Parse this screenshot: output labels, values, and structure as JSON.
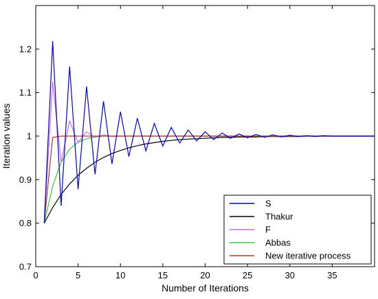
{
  "chart_data": {
    "type": "line",
    "title": "",
    "xlabel": "Number of Iterations",
    "ylabel": "Iteration values",
    "xlim": [
      0,
      40
    ],
    "ylim": [
      0.7,
      1.3
    ],
    "xticks": [
      0,
      5,
      10,
      15,
      20,
      25,
      30,
      35
    ],
    "yticks": [
      0.7,
      0.8,
      0.9,
      1,
      1.1,
      1.2
    ],
    "ytick_labels": [
      "0.7",
      "0.8",
      "0.9",
      "1",
      "1.1",
      "1.2"
    ],
    "grid": false,
    "legend_position": "bottom-right",
    "series": [
      {
        "name": "S",
        "color": "#0000cc",
        "x": [
          1,
          2,
          3,
          4,
          5,
          6,
          7,
          8,
          9,
          10,
          11,
          12,
          13,
          14,
          15,
          16,
          17,
          18,
          19,
          20,
          21,
          22,
          23,
          24,
          25,
          26,
          27,
          28,
          29,
          30,
          31,
          32,
          33,
          34,
          35,
          36,
          37,
          38,
          39,
          40
        ],
        "y": [
          0.8,
          1.218,
          0.84,
          1.16,
          0.878,
          1.114,
          0.912,
          1.08,
          0.936,
          1.056,
          0.953,
          1.041,
          0.966,
          1.029,
          0.977,
          1.02,
          0.984,
          1.014,
          0.989,
          1.01,
          0.992,
          1.007,
          0.995,
          1.005,
          0.996,
          1.004,
          0.997,
          1.003,
          0.998,
          1.002,
          0.999,
          1.001,
          0.999,
          1.001,
          1.0,
          1.0,
          1.0,
          1.0,
          1.0,
          1.0
        ]
      },
      {
        "name": "Thakur",
        "color": "#000000",
        "x": [
          1,
          2,
          3,
          4,
          5,
          6,
          7,
          8,
          9,
          10,
          11,
          12,
          13,
          14,
          15,
          16,
          17,
          18,
          19,
          20,
          21,
          22,
          23,
          24,
          25,
          26,
          27,
          28,
          29,
          30,
          31,
          32,
          33,
          34,
          35,
          36,
          37,
          38,
          39,
          40
        ],
        "y": [
          0.8,
          0.836,
          0.866,
          0.89,
          0.91,
          0.926,
          0.94,
          0.951,
          0.96,
          0.967,
          0.973,
          0.978,
          0.982,
          0.985,
          0.988,
          0.99,
          0.992,
          0.993,
          0.994,
          0.995,
          0.996,
          0.997,
          0.997,
          0.998,
          0.998,
          0.998,
          0.999,
          0.999,
          0.999,
          0.999,
          0.999,
          1.0,
          1.0,
          1.0,
          1.0,
          1.0,
          1.0,
          1.0,
          1.0,
          1.0
        ]
      },
      {
        "name": "F",
        "color": "#cc66ff",
        "x": [
          1,
          2,
          3,
          4,
          5,
          6,
          7,
          8,
          9,
          10,
          11,
          12,
          13,
          14,
          15,
          16,
          17,
          18,
          19,
          20,
          21,
          22,
          23,
          24,
          25,
          26,
          27,
          28,
          29,
          30,
          31,
          32,
          33,
          34,
          35,
          36,
          37,
          38,
          39,
          40
        ],
        "y": [
          0.8,
          1.125,
          0.94,
          1.035,
          0.985,
          1.01,
          0.997,
          1.003,
          0.999,
          1.0,
          1.0,
          1.0,
          1.0,
          1.0,
          1.0,
          1.0,
          1.0,
          1.0,
          1.0,
          1.0,
          1.0,
          1.0,
          1.0,
          1.0,
          1.0,
          1.0,
          1.0,
          1.0,
          1.0,
          1.0,
          1.0,
          1.0,
          1.0,
          1.0,
          1.0,
          1.0,
          1.0,
          1.0,
          1.0,
          1.0
        ]
      },
      {
        "name": "Abbas",
        "color": "#33cc33",
        "x": [
          1,
          2,
          3,
          4,
          5,
          6,
          7,
          8,
          9,
          10,
          11,
          12,
          13,
          14,
          15,
          16,
          17,
          18,
          19,
          20,
          21,
          22,
          23,
          24,
          25,
          26,
          27,
          28,
          29,
          30,
          31,
          32,
          33,
          34,
          35,
          36,
          37,
          38,
          39,
          40
        ],
        "y": [
          0.8,
          0.885,
          0.94,
          0.97,
          0.986,
          0.994,
          0.998,
          1.0,
          1.0,
          1.0,
          1.0,
          1.0,
          1.0,
          1.0,
          1.0,
          1.0,
          1.0,
          1.0,
          1.0,
          1.0,
          1.0,
          1.0,
          1.0,
          1.0,
          1.0,
          1.0,
          1.0,
          1.0,
          1.0,
          1.0,
          1.0,
          1.0,
          1.0,
          1.0,
          1.0,
          1.0,
          1.0,
          1.0,
          1.0,
          1.0
        ]
      },
      {
        "name": " New iterative process",
        "color": "#b03a1a",
        "x": [
          1,
          2,
          3,
          4,
          5,
          6,
          7,
          8,
          9,
          10,
          11,
          12,
          13,
          14,
          15,
          16,
          17,
          18,
          19,
          20,
          21,
          22,
          23,
          24,
          25,
          26,
          27,
          28,
          29,
          30,
          31,
          32,
          33,
          34,
          35,
          36,
          37,
          38,
          39,
          40
        ],
        "y": [
          0.8,
          0.997,
          1.0,
          1.0,
          1.0,
          1.0,
          1.0,
          1.0,
          1.0,
          1.0,
          1.0,
          1.0,
          1.0,
          1.0,
          1.0,
          1.0,
          1.0,
          1.0,
          1.0,
          1.0,
          1.0,
          1.0,
          1.0,
          1.0,
          1.0,
          1.0,
          1.0,
          1.0,
          1.0,
          1.0,
          1.0,
          1.0,
          1.0,
          1.0,
          1.0,
          1.0,
          1.0,
          1.0,
          1.0,
          1.0
        ]
      }
    ]
  }
}
